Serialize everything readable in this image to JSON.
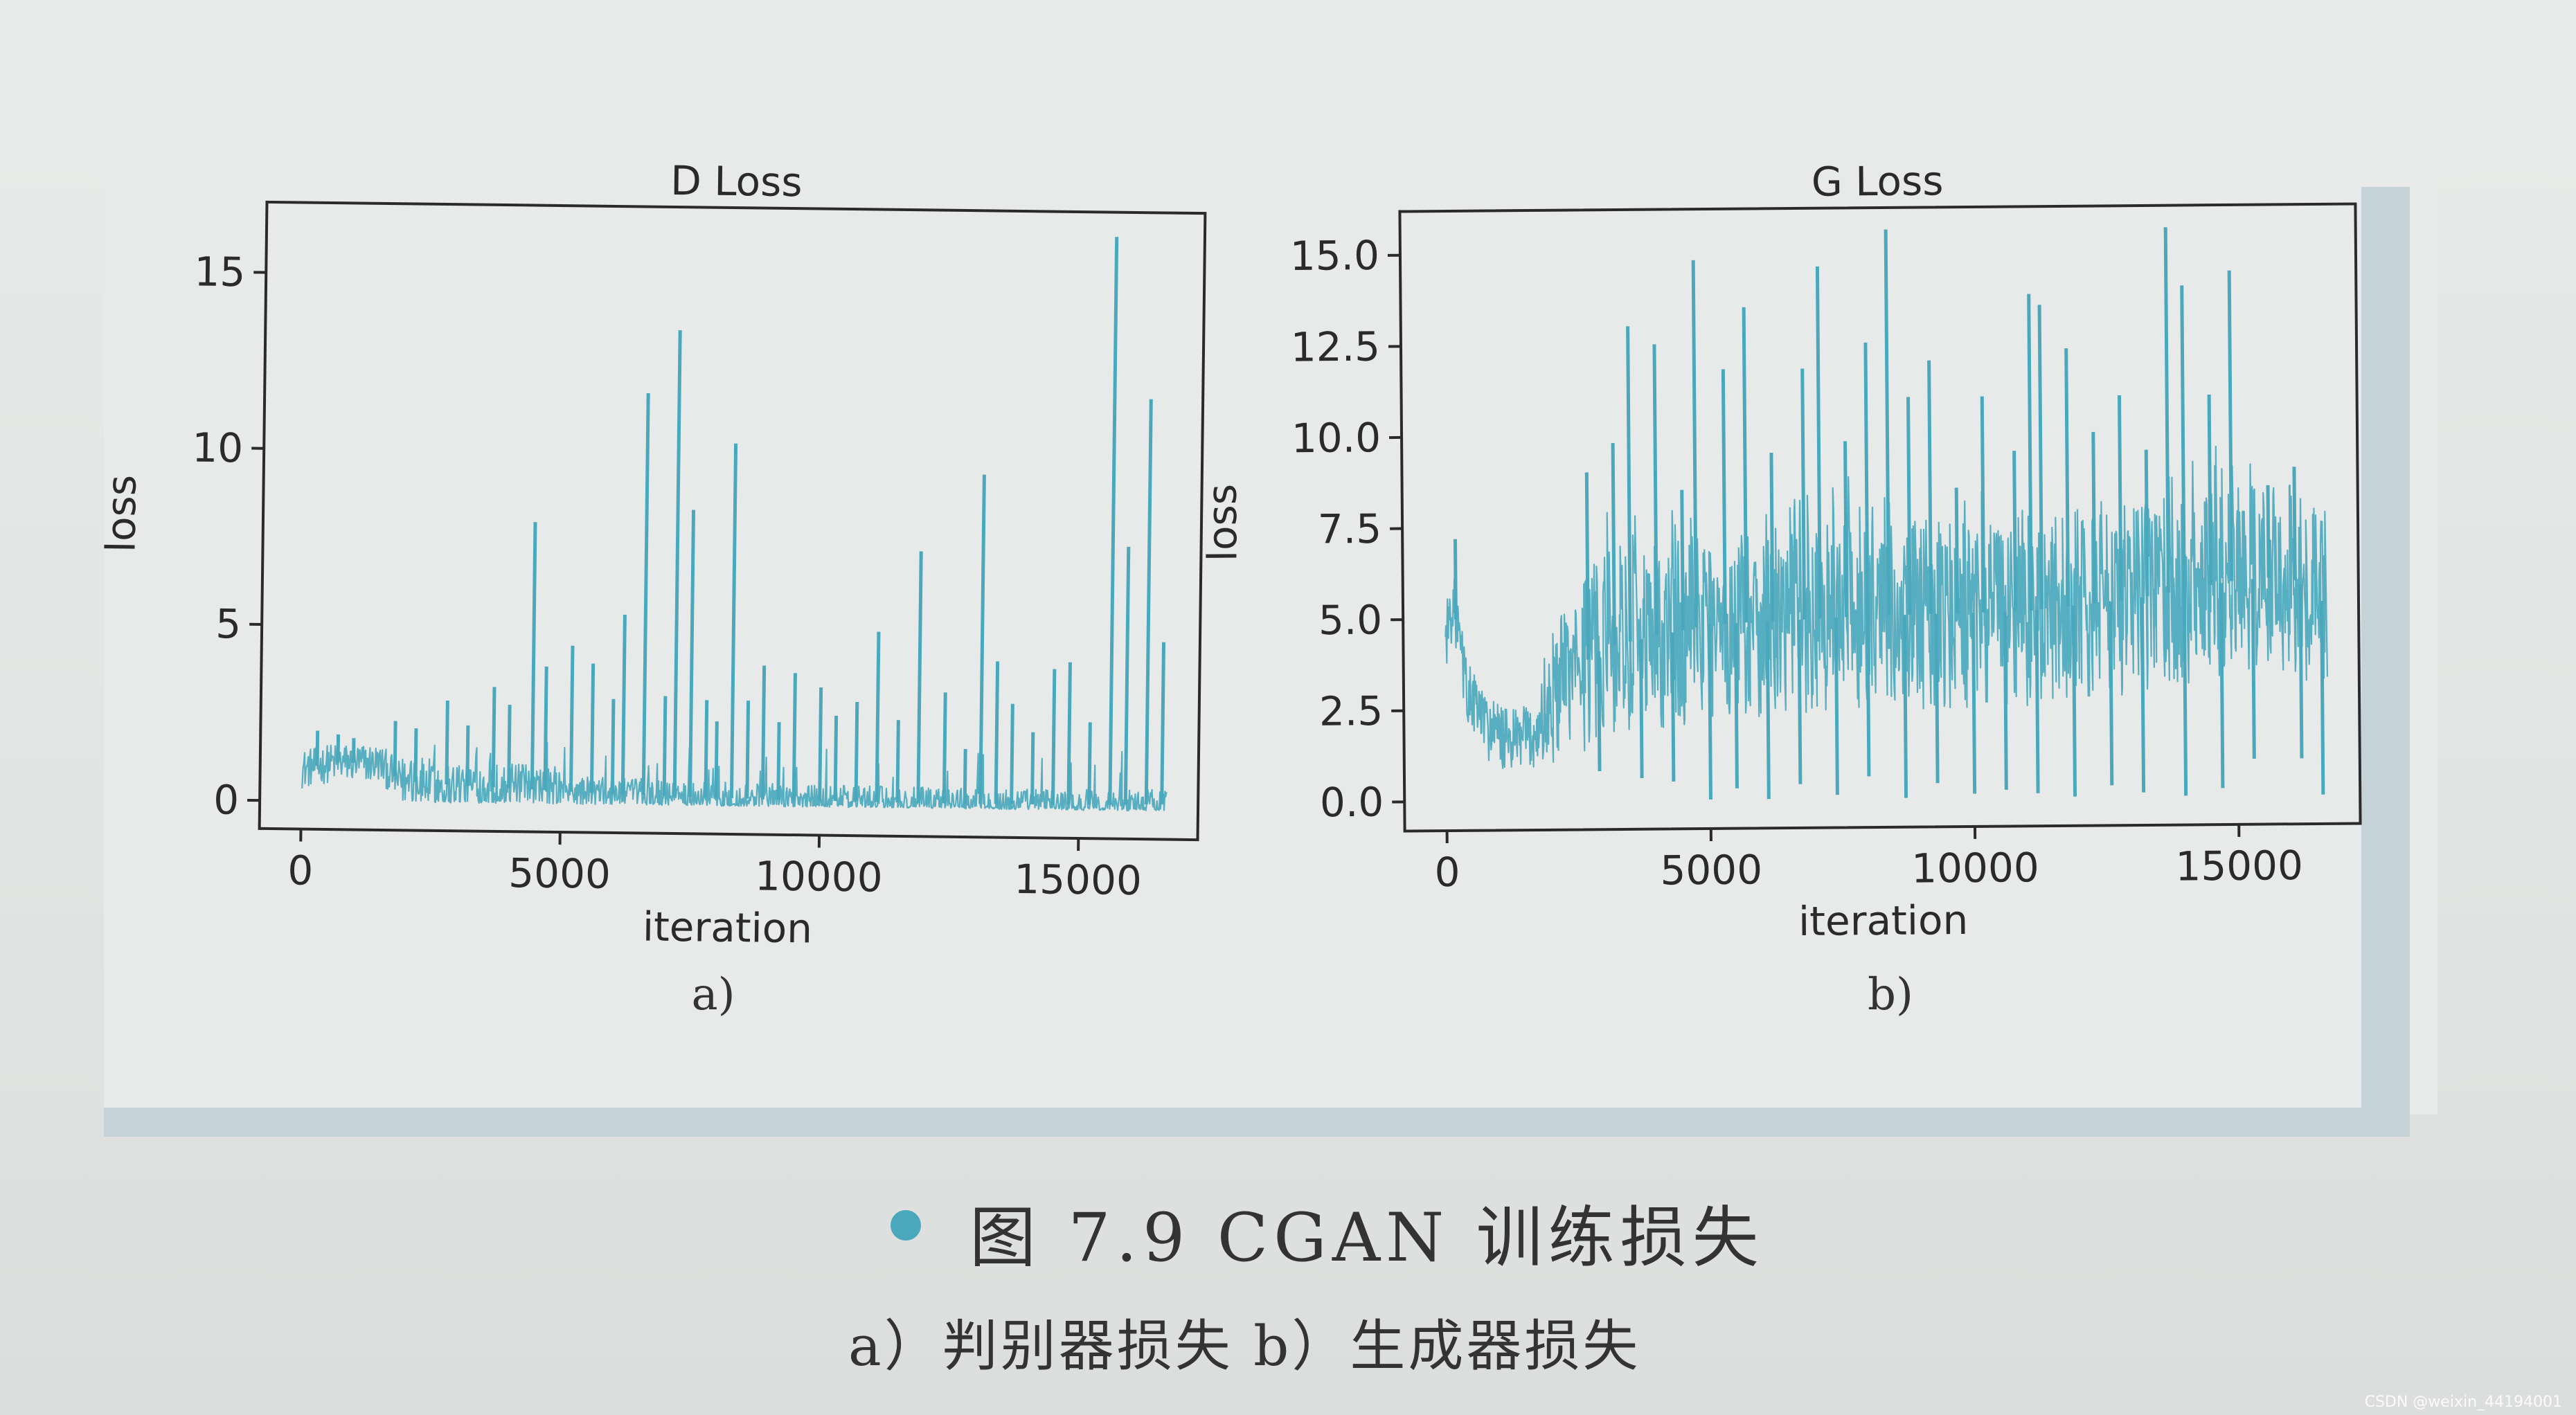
{
  "figure": {
    "caption_title": "图 7.9   CGAN 训练损失",
    "caption_sub": "a）判别器损失   b）生成器损失",
    "watermark": "CSDN @weixin_44194001",
    "line_color": "#4aa8bd",
    "caption_bullet_color": "#4aa8bd"
  },
  "chart_data": [
    {
      "type": "line",
      "title": "D Loss",
      "xlabel": "iteration",
      "ylabel": "loss",
      "panel_label": "a)",
      "xlim": [
        -800,
        17300
      ],
      "ylim": [
        -0.8,
        17.0
      ],
      "xticks": [
        0,
        5000,
        10000,
        15000
      ],
      "xtick_labels": [
        "0",
        "5000",
        "10000",
        "15000"
      ],
      "yticks": [
        0,
        5,
        10,
        15
      ],
      "ytick_labels": [
        "0",
        "5",
        "10",
        "15"
      ],
      "grid": false,
      "series": [
        {
          "color": "#4aa8bd",
          "baseline": [
            [
              0,
              0.9
            ],
            [
              600,
              1.1
            ],
            [
              1500,
              1.1
            ],
            [
              1900,
              0.6
            ],
            [
              3000,
              0.5
            ],
            [
              4500,
              0.4
            ],
            [
              6000,
              0.3
            ],
            [
              9000,
              0.2
            ],
            [
              12000,
              0.15
            ],
            [
              15000,
              0.15
            ],
            [
              16700,
              0.2
            ]
          ],
          "spikes": [
            [
              300,
              2.0
            ],
            [
              700,
              1.9
            ],
            [
              1000,
              1.8
            ],
            [
              1800,
              2.3
            ],
            [
              2200,
              2.1
            ],
            [
              2800,
              2.9
            ],
            [
              3200,
              2.2
            ],
            [
              3700,
              3.3
            ],
            [
              4000,
              2.8
            ],
            [
              4450,
              8.0
            ],
            [
              4700,
              3.9
            ],
            [
              5200,
              4.5
            ],
            [
              5600,
              4.0
            ],
            [
              6000,
              3.0
            ],
            [
              6200,
              5.4
            ],
            [
              6600,
              11.7
            ],
            [
              7000,
              3.1
            ],
            [
              7200,
              13.5
            ],
            [
              7500,
              8.4
            ],
            [
              7800,
              3.0
            ],
            [
              8000,
              2.4
            ],
            [
              8300,
              10.3
            ],
            [
              8600,
              3.0
            ],
            [
              8900,
              4.0
            ],
            [
              9200,
              2.4
            ],
            [
              9500,
              3.8
            ],
            [
              10000,
              3.4
            ],
            [
              10300,
              2.6
            ],
            [
              10700,
              3.0
            ],
            [
              11100,
              5.0
            ],
            [
              11500,
              2.5
            ],
            [
              11900,
              7.3
            ],
            [
              12400,
              3.3
            ],
            [
              12800,
              1.7
            ],
            [
              13100,
              9.5
            ],
            [
              13400,
              4.2
            ],
            [
              13700,
              3.0
            ],
            [
              14100,
              2.2
            ],
            [
              14500,
              4.0
            ],
            [
              14800,
              4.2
            ],
            [
              15200,
              2.5
            ],
            [
              15600,
              16.3
            ],
            [
              15900,
              7.5
            ],
            [
              16300,
              11.7
            ],
            [
              16600,
              4.8
            ]
          ]
        }
      ]
    },
    {
      "type": "line",
      "title": "G Loss",
      "xlabel": "iteration",
      "ylabel": "loss",
      "panel_label": "b)",
      "xlim": [
        -800,
        17300
      ],
      "ylim": [
        -0.8,
        16.2
      ],
      "xticks": [
        0,
        5000,
        10000,
        15000
      ],
      "xtick_labels": [
        "0",
        "5000",
        "10000",
        "15000"
      ],
      "yticks": [
        0,
        2.5,
        5,
        7.5,
        10,
        12.5,
        15
      ],
      "ytick_labels": [
        "0.0",
        "2.5",
        "5.0",
        "7.5",
        "10.0",
        "12.5",
        "15.0"
      ],
      "grid": false,
      "series": [
        {
          "color": "#4aa8bd",
          "centerline": [
            [
              0,
              4.5
            ],
            [
              150,
              5.5
            ],
            [
              400,
              3.0
            ],
            [
              800,
              2.0
            ],
            [
              1200,
              1.6
            ],
            [
              1700,
              1.8
            ],
            [
              2200,
              3.3
            ],
            [
              3000,
              4.2
            ],
            [
              5000,
              4.8
            ],
            [
              8000,
              5.0
            ],
            [
              11000,
              5.1
            ],
            [
              13000,
              5.4
            ],
            [
              15000,
              5.9
            ],
            [
              16000,
              6.0
            ],
            [
              16700,
              5.2
            ]
          ],
          "spikes": [
            [
              200,
              7.2
            ],
            [
              2700,
              9.0
            ],
            [
              3200,
              9.8
            ],
            [
              3500,
              13.0
            ],
            [
              4000,
              12.5
            ],
            [
              4500,
              8.5
            ],
            [
              4750,
              14.8
            ],
            [
              5300,
              11.8
            ],
            [
              5700,
              13.5
            ],
            [
              6200,
              9.5
            ],
            [
              6800,
              11.8
            ],
            [
              7100,
              14.6
            ],
            [
              7600,
              9.8
            ],
            [
              8000,
              12.5
            ],
            [
              8400,
              15.6
            ],
            [
              8800,
              11.0
            ],
            [
              9200,
              12.0
            ],
            [
              9700,
              8.5
            ],
            [
              10200,
              11.0
            ],
            [
              10800,
              9.5
            ],
            [
              11100,
              13.8
            ],
            [
              11300,
              13.5
            ],
            [
              11800,
              12.3
            ],
            [
              12300,
              10.0
            ],
            [
              12800,
              11.0
            ],
            [
              13300,
              9.5
            ],
            [
              13700,
              15.6
            ],
            [
              14000,
              14.0
            ],
            [
              14500,
              11.0
            ],
            [
              14900,
              14.4
            ],
            [
              15600,
              8.5
            ],
            [
              16100,
              9.0
            ]
          ],
          "dips": [
            [
              2900,
              0.8
            ],
            [
              3700,
              0.6
            ],
            [
              4300,
              0.5
            ],
            [
              5000,
              0.0
            ],
            [
              5500,
              0.3
            ],
            [
              6100,
              0.0
            ],
            [
              6700,
              0.4
            ],
            [
              7400,
              0.1
            ],
            [
              8000,
              0.6
            ],
            [
              8700,
              0.0
            ],
            [
              9300,
              0.4
            ],
            [
              10000,
              0.1
            ],
            [
              10600,
              0.2
            ],
            [
              11200,
              0.1
            ],
            [
              11900,
              0.0
            ],
            [
              12600,
              0.3
            ],
            [
              13200,
              0.1
            ],
            [
              14000,
              0.0
            ],
            [
              14700,
              0.2
            ],
            [
              15300,
              1.0
            ],
            [
              16200,
              1.0
            ],
            [
              16600,
              0.0
            ]
          ]
        }
      ]
    }
  ]
}
